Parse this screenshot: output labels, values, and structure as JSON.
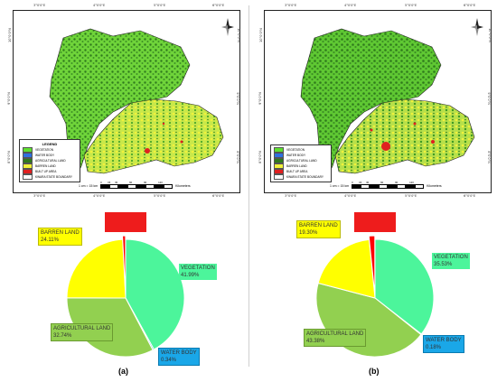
{
  "figures": [
    {
      "id": "a",
      "caption": "(a)",
      "map": {
        "top_ticks": [
          "3°0'0\"E",
          "4°0'0\"E",
          "5°0'0\"E",
          "6°0'0\"E"
        ],
        "bottom_ticks": [
          "3°0'0\"E",
          "4°0'0\"E",
          "5°0'0\"E",
          "6°0'0\"E"
        ],
        "left_ticks": [
          "10°0'0\"N",
          "9°0'0\"N",
          "8°0'0\"N"
        ],
        "right_ticks": [
          "10°0'0\"N",
          "9°0'0\"N",
          "8°0'0\"N"
        ],
        "legend_title": "LEGEND",
        "legend_items": [
          {
            "label": "VEGETATION",
            "color": "#5ee02f"
          },
          {
            "label": "WATER BODY",
            "color": "#2f6fe0"
          },
          {
            "label": "AGRICULTURAL LAND",
            "color": "#2f7a1c"
          },
          {
            "label": "BARREN LAND",
            "color": "#f2f23a"
          },
          {
            "label": "BUILT UP AREA",
            "color": "#e02020"
          },
          {
            "label": "KWARA STATE BOUNDARY",
            "color": "#ffffff"
          }
        ],
        "scale_label": "1 cm = 15 km",
        "scale_numbers": [
          "0",
          "15",
          "30",
          "60",
          "90",
          "120"
        ],
        "scale_unit": "Kilometers",
        "north": "N"
      },
      "chart_data": {
        "type": "pie",
        "slices": [
          {
            "name": "VEGETATION",
            "value": 41.99,
            "label": "41.99%",
            "color": "#4cf59b"
          },
          {
            "name": "WATER BODY",
            "value": 0.34,
            "label": "0.34%",
            "color": "#1aa7e8"
          },
          {
            "name": "AGRICULTURAL LAND",
            "value": 32.74,
            "label": "32.74%",
            "color": "#92d050"
          },
          {
            "name": "BARREN LAND",
            "value": 24.11,
            "label": "24.11%",
            "color": "#ffff00"
          },
          {
            "name": "BUILT UP AREA",
            "value": 0.82,
            "label": "",
            "color": "#ff0000"
          }
        ]
      }
    },
    {
      "id": "b",
      "caption": "(b)",
      "map": {
        "top_ticks": [
          "3°0'0\"E",
          "4°0'0\"E",
          "5°0'0\"E",
          "6°0'0\"E"
        ],
        "bottom_ticks": [
          "3°0'0\"E",
          "4°0'0\"E",
          "5°0'0\"E",
          "6°0'0\"E"
        ],
        "left_ticks": [
          "10°0'0\"N",
          "9°0'0\"N",
          "8°0'0\"N"
        ],
        "right_ticks": [
          "10°0'0\"N",
          "9°0'0\"N",
          "8°0'0\"N"
        ],
        "legend_title": "",
        "legend_items": [
          {
            "label": "VEGETATION",
            "color": "#5ee02f"
          },
          {
            "label": "WATER BODY",
            "color": "#2f6fe0"
          },
          {
            "label": "AGRICULTURAL LAND",
            "color": "#2f7a1c"
          },
          {
            "label": "BARREN LAND",
            "color": "#f2f23a"
          },
          {
            "label": "BUILT UP AREA",
            "color": "#e02020"
          },
          {
            "label": "KWARA STATE BOUNDARY",
            "color": "#ffffff"
          }
        ],
        "scale_label": "1 cm = 15 km",
        "scale_numbers": [
          "0",
          "15",
          "30",
          "60",
          "90",
          "120"
        ],
        "scale_unit": "Kilometers",
        "north": "N"
      },
      "chart_data": {
        "type": "pie",
        "slices": [
          {
            "name": "VEGETATION",
            "value": 35.53,
            "label": "35.53%",
            "color": "#4cf59b"
          },
          {
            "name": "WATER BODY",
            "value": 0.18,
            "label": "0.18%",
            "color": "#1aa7e8"
          },
          {
            "name": "AGRICULTURAL LAND",
            "value": 43.38,
            "label": "43.38%",
            "color": "#92d050"
          },
          {
            "name": "BARREN LAND",
            "value": 19.3,
            "label": "19.30%",
            "color": "#ffff00"
          },
          {
            "name": "BUILT UP AREA",
            "value": 1.61,
            "label": "",
            "color": "#ff0000"
          }
        ]
      }
    }
  ]
}
